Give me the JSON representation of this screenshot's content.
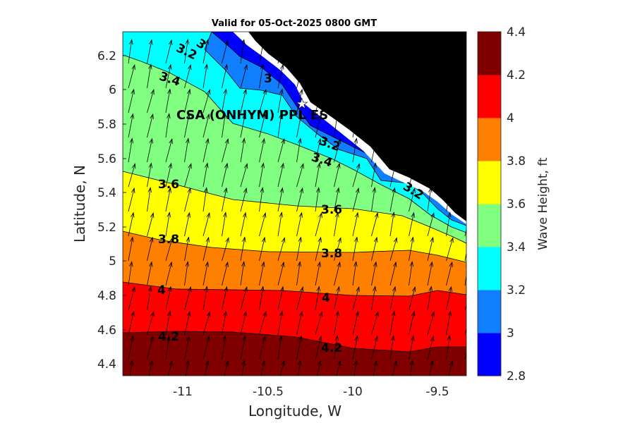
{
  "chart_data": {
    "type": "heatmap",
    "title": "Valid for 05-Oct-2025 0800 GMT",
    "xlabel": "Longitude, W",
    "ylabel": "Latitude, N",
    "xlim": [
      -11.35,
      -9.33
    ],
    "ylim": [
      4.33,
      6.35
    ],
    "xticks": [
      "-11",
      "-10.5",
      "-10",
      "-9.5"
    ],
    "yticks": [
      "4.4",
      "4.6",
      "4.8",
      "5",
      "5.2",
      "5.4",
      "5.6",
      "5.8",
      "6",
      "6.2"
    ],
    "colorbar": {
      "label": "Wave Height, ft",
      "ticks": [
        "2.8",
        "3",
        "3.2",
        "3.4",
        "3.6",
        "3.8",
        "4",
        "4.2",
        "4.4"
      ],
      "levels": [
        2.8,
        3.0,
        3.2,
        3.4,
        3.6,
        3.8,
        4.0,
        4.2,
        4.4
      ],
      "colors": [
        "#0000ff",
        "#0f7fff",
        "#00ffff",
        "#80ff80",
        "#ffff00",
        "#ff8000",
        "#ff0000",
        "#800000"
      ]
    },
    "contour_labels": [
      "3",
      "3.2",
      "3.4",
      "3",
      "3.2",
      "3.4",
      "3.2",
      "3.6",
      "3.6",
      "3.8",
      "3.8",
      "4",
      "4",
      "4.2",
      "4.2"
    ],
    "station_label": "CSA (ONHYM) PPL ES",
    "grid": false,
    "land_color": "#000000",
    "arrow_direction": "north-northeast"
  }
}
